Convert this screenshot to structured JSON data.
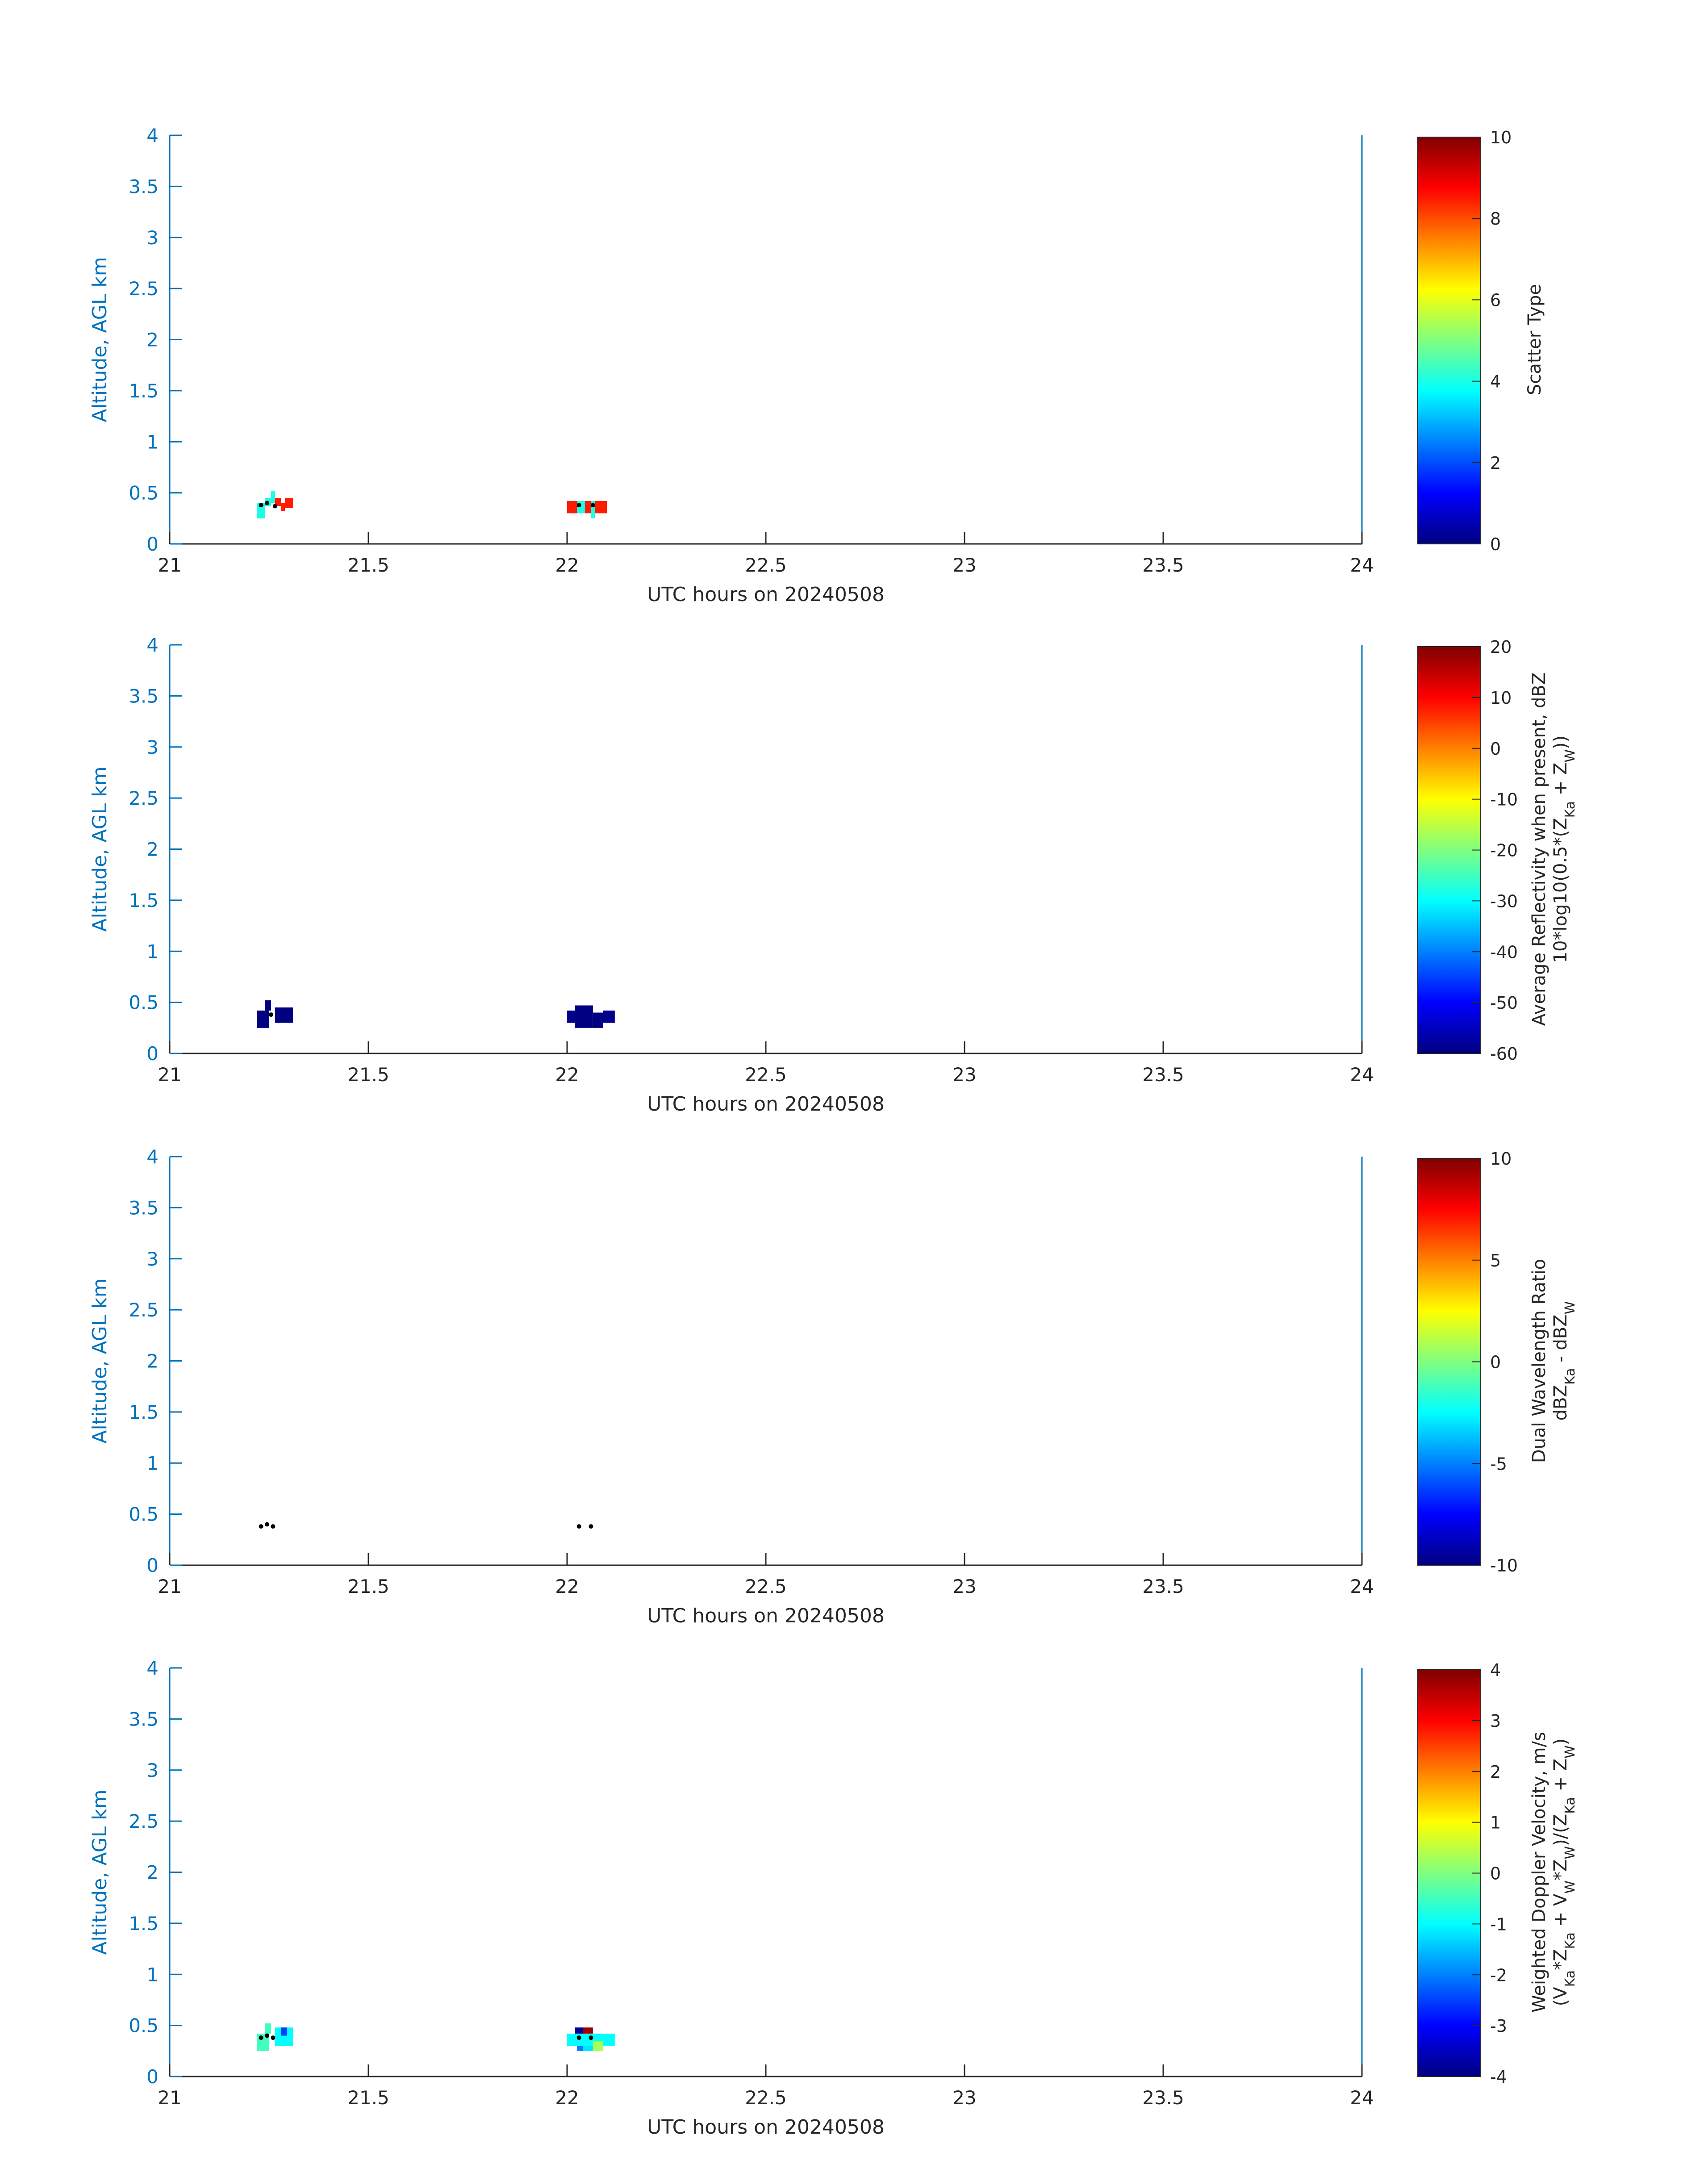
{
  "figure": {
    "axis_color": "#0072BD",
    "text_color": "#262626",
    "colormap": "jet"
  },
  "chart_data": [
    {
      "type": "heatmap",
      "xlabel": "UTC hours on 20240508",
      "ylabel": "Altitude, AGL km",
      "xlim": [
        21,
        24
      ],
      "ylim": [
        0,
        4
      ],
      "xticks": [
        "21",
        "21.5",
        "22",
        "22.5",
        "23",
        "23.5",
        "24"
      ],
      "yticks": [
        "0",
        "0.5",
        "1",
        "1.5",
        "2",
        "2.5",
        "3",
        "3.5",
        "4"
      ],
      "colorbar": {
        "label_lines": [
          "Scatter Type"
        ],
        "lim": [
          0,
          10
        ],
        "ticks": [
          "0",
          "2",
          "4",
          "6",
          "8",
          "10"
        ]
      },
      "cells": [
        {
          "x0": 21.22,
          "x1": 21.24,
          "y0": 0.25,
          "y1": 0.35,
          "value": 4.0
        },
        {
          "x0": 21.22,
          "x1": 21.24,
          "y0": 0.35,
          "y1": 0.4,
          "value": 4.0
        },
        {
          "x0": 21.24,
          "x1": 21.255,
          "y0": 0.37,
          "y1": 0.45,
          "value": 4.0
        },
        {
          "x0": 21.255,
          "x1": 21.265,
          "y0": 0.4,
          "y1": 0.52,
          "value": 4.0
        },
        {
          "x0": 21.265,
          "x1": 21.28,
          "y0": 0.37,
          "y1": 0.45,
          "value": 8.5
        },
        {
          "x0": 21.28,
          "x1": 21.29,
          "y0": 0.32,
          "y1": 0.4,
          "value": 8.5
        },
        {
          "x0": 21.29,
          "x1": 21.31,
          "y0": 0.35,
          "y1": 0.45,
          "value": 8.5
        },
        {
          "x0": 22.0,
          "x1": 22.025,
          "y0": 0.3,
          "y1": 0.42,
          "value": 8.5
        },
        {
          "x0": 22.025,
          "x1": 22.045,
          "y0": 0.3,
          "y1": 0.42,
          "value": 4.0
        },
        {
          "x0": 22.045,
          "x1": 22.06,
          "y0": 0.3,
          "y1": 0.42,
          "value": 8.5
        },
        {
          "x0": 22.06,
          "x1": 22.07,
          "y0": 0.25,
          "y1": 0.42,
          "value": 4.0
        },
        {
          "x0": 22.07,
          "x1": 22.1,
          "y0": 0.3,
          "y1": 0.42,
          "value": 8.5
        }
      ],
      "dots": [
        {
          "x": 21.23,
          "y": 0.38
        },
        {
          "x": 21.245,
          "y": 0.4
        },
        {
          "x": 21.265,
          "y": 0.37
        },
        {
          "x": 22.03,
          "y": 0.38
        },
        {
          "x": 22.065,
          "y": 0.38
        }
      ]
    },
    {
      "type": "heatmap",
      "xlabel": "UTC hours on 20240508",
      "ylabel": "Altitude, AGL km",
      "xlim": [
        21,
        24
      ],
      "ylim": [
        0,
        4
      ],
      "xticks": [
        "21",
        "21.5",
        "22",
        "22.5",
        "23",
        "23.5",
        "24"
      ],
      "yticks": [
        "0",
        "0.5",
        "1",
        "1.5",
        "2",
        "2.5",
        "3",
        "3.5",
        "4"
      ],
      "colorbar": {
        "label_lines": [
          "Average Reflectivity when present, dBZ",
          "10*log10(0.5*(Z_Ka + Z_W))"
        ],
        "lim": [
          -60,
          20
        ],
        "ticks": [
          "-60",
          "-50",
          "-40",
          "-30",
          "-20",
          "-10",
          "0",
          "10",
          "20"
        ]
      },
      "cells": [
        {
          "x0": 21.22,
          "x1": 21.25,
          "y0": 0.25,
          "y1": 0.42,
          "value": -60
        },
        {
          "x0": 21.24,
          "x1": 21.255,
          "y0": 0.42,
          "y1": 0.52,
          "value": -60
        },
        {
          "x0": 21.265,
          "x1": 21.31,
          "y0": 0.3,
          "y1": 0.45,
          "value": -60
        },
        {
          "x0": 22.0,
          "x1": 22.02,
          "y0": 0.3,
          "y1": 0.42,
          "value": -59
        },
        {
          "x0": 22.02,
          "x1": 22.065,
          "y0": 0.25,
          "y1": 0.47,
          "value": -60
        },
        {
          "x0": 22.065,
          "x1": 22.09,
          "y0": 0.25,
          "y1": 0.4,
          "value": -60
        },
        {
          "x0": 22.09,
          "x1": 22.12,
          "y0": 0.3,
          "y1": 0.42,
          "value": -59
        }
      ],
      "dots": [
        {
          "x": 21.255,
          "y": 0.38
        }
      ]
    },
    {
      "type": "heatmap",
      "xlabel": "UTC hours on 20240508",
      "ylabel": "Altitude, AGL km",
      "xlim": [
        21,
        24
      ],
      "ylim": [
        0,
        4
      ],
      "xticks": [
        "21",
        "21.5",
        "22",
        "22.5",
        "23",
        "23.5",
        "24"
      ],
      "yticks": [
        "0",
        "0.5",
        "1",
        "1.5",
        "2",
        "2.5",
        "3",
        "3.5",
        "4"
      ],
      "colorbar": {
        "label_lines": [
          "Dual Wavelength Ratio",
          "dBZ_Ka - dBZ_W"
        ],
        "lim": [
          -10,
          10
        ],
        "ticks": [
          "-10",
          "-5",
          "0",
          "5",
          "10"
        ]
      },
      "cells": [],
      "dots": [
        {
          "x": 21.23,
          "y": 0.38
        },
        {
          "x": 21.245,
          "y": 0.4
        },
        {
          "x": 21.26,
          "y": 0.38
        },
        {
          "x": 22.03,
          "y": 0.38
        },
        {
          "x": 22.06,
          "y": 0.38
        }
      ]
    },
    {
      "type": "heatmap",
      "xlabel": "UTC hours on 20240508",
      "ylabel": "Altitude, AGL km",
      "xlim": [
        21,
        24
      ],
      "ylim": [
        0,
        4
      ],
      "xticks": [
        "21",
        "21.5",
        "22",
        "22.5",
        "23",
        "23.5",
        "24"
      ],
      "yticks": [
        "0",
        "0.5",
        "1",
        "1.5",
        "2",
        "2.5",
        "3",
        "3.5",
        "4"
      ],
      "colorbar": {
        "label_lines": [
          "Weighted Doppler Velocity, m/s",
          "(V_Ka*Z_Ka + V_W*Z_W)/(Z_Ka + Z_W)"
        ],
        "lim": [
          -4,
          4
        ],
        "ticks": [
          "-4",
          "-3",
          "-2",
          "-1",
          "0",
          "1",
          "2",
          "3",
          "4"
        ]
      },
      "cells": [
        {
          "x0": 21.22,
          "x1": 21.25,
          "y0": 0.25,
          "y1": 0.42,
          "value": -0.5
        },
        {
          "x0": 21.24,
          "x1": 21.255,
          "y0": 0.42,
          "y1": 0.52,
          "value": -0.5
        },
        {
          "x0": 21.265,
          "x1": 21.31,
          "y0": 0.3,
          "y1": 0.48,
          "value": -1.0
        },
        {
          "x0": 21.28,
          "x1": 21.295,
          "y0": 0.4,
          "y1": 0.48,
          "value": -2.5
        },
        {
          "x0": 22.0,
          "x1": 22.025,
          "y0": 0.3,
          "y1": 0.42,
          "value": -1.0
        },
        {
          "x0": 22.02,
          "x1": 22.04,
          "y0": 0.42,
          "y1": 0.48,
          "value": -3.8
        },
        {
          "x0": 22.04,
          "x1": 22.065,
          "y0": 0.42,
          "y1": 0.48,
          "value": 3.8
        },
        {
          "x0": 22.02,
          "x1": 22.065,
          "y0": 0.3,
          "y1": 0.42,
          "value": -1.0
        },
        {
          "x0": 22.025,
          "x1": 22.04,
          "y0": 0.25,
          "y1": 0.3,
          "value": -2.0
        },
        {
          "x0": 22.04,
          "x1": 22.065,
          "y0": 0.25,
          "y1": 0.3,
          "value": -1.2
        },
        {
          "x0": 22.065,
          "x1": 22.09,
          "y0": 0.25,
          "y1": 0.35,
          "value": 0.3
        },
        {
          "x0": 22.065,
          "x1": 22.09,
          "y0": 0.35,
          "y1": 0.42,
          "value": -1.0
        },
        {
          "x0": 22.09,
          "x1": 22.12,
          "y0": 0.3,
          "y1": 0.42,
          "value": -1.0
        }
      ],
      "dots": [
        {
          "x": 21.23,
          "y": 0.38
        },
        {
          "x": 21.245,
          "y": 0.4
        },
        {
          "x": 21.26,
          "y": 0.38
        },
        {
          "x": 22.03,
          "y": 0.38
        },
        {
          "x": 22.06,
          "y": 0.38
        }
      ]
    }
  ]
}
